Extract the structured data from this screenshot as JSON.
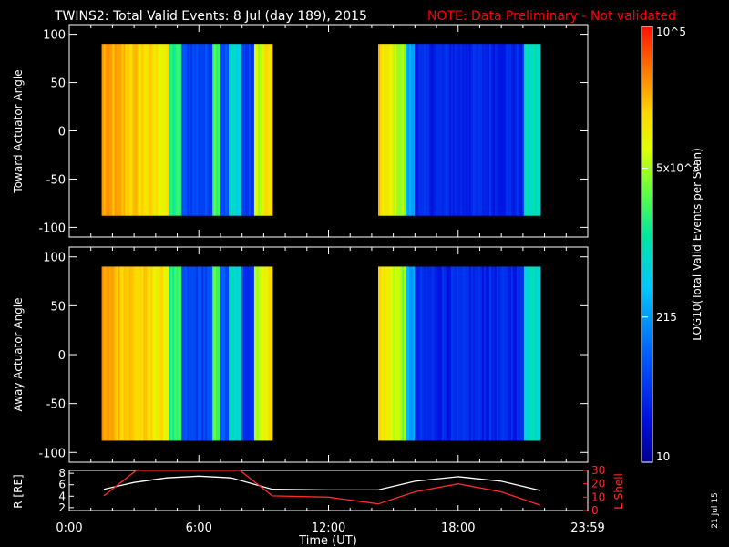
{
  "header": {
    "title": "TWINS2: Total Valid Events:  8 Jul (day 189), 2015",
    "note": "NOTE: Data Preliminary - Not validated"
  },
  "footer": {
    "date_stamp": "21 Jul 15"
  },
  "colors": {
    "background": "#000000",
    "axis": "#ffffff",
    "note": "#ff0000",
    "r_line": "#ffffff",
    "lshell_line": "#ff2a2a"
  },
  "chart_data": [
    {
      "type": "heatmap",
      "panel": "top",
      "ylabel": "Toward Actuator Angle",
      "ylim": [
        -110,
        110
      ],
      "yticks": [
        100,
        50,
        0,
        -50,
        -100
      ],
      "xlim_hours": [
        0,
        24
      ],
      "data_coverage": [
        {
          "start_hour": 1.5,
          "end_hour": 9.4,
          "angle_range": [
            -88,
            90
          ]
        },
        {
          "start_hour": 14.3,
          "end_hour": 21.8,
          "angle_range": [
            -88,
            90
          ]
        }
      ]
    },
    {
      "type": "heatmap",
      "panel": "bottom",
      "ylabel": "Away Actuator Angle",
      "ylim": [
        -110,
        110
      ],
      "yticks": [
        100,
        50,
        0,
        -50,
        -100
      ],
      "xlim_hours": [
        0,
        24
      ],
      "data_coverage": [
        {
          "start_hour": 1.5,
          "end_hour": 9.4,
          "angle_range": [
            -88,
            90
          ]
        },
        {
          "start_hour": 14.3,
          "end_hour": 21.8,
          "angle_range": [
            -88,
            90
          ]
        }
      ]
    },
    {
      "type": "line",
      "panel": "ephemeris",
      "xlabel": "Time (UT)",
      "xticks": [
        "0:00",
        "6:00",
        "12:00",
        "18:00",
        "23:59"
      ],
      "left_axis": {
        "label": "R [RE]",
        "ticks": [
          8,
          6,
          4,
          2
        ],
        "ylim": [
          1.5,
          8.5
        ]
      },
      "right_axis": {
        "label": "L Shell",
        "ticks": [
          30,
          20,
          10,
          0
        ],
        "ylim": [
          0,
          30
        ]
      },
      "series": [
        {
          "name": "R [RE]",
          "axis": "left",
          "x": [
            1.6,
            3,
            4.5,
            6,
            7.5,
            9.4,
            12,
            14.3,
            16,
            18,
            20,
            21.8
          ],
          "y": [
            5.2,
            6.4,
            7.2,
            7.5,
            7.2,
            5.2,
            5.1,
            5.1,
            6.6,
            7.4,
            6.6,
            5.0
          ]
        },
        {
          "name": "L Shell",
          "axis": "right",
          "x": [
            1.6,
            3.1,
            7.9,
            9.4,
            12,
            14.3,
            16,
            18,
            20,
            21.8
          ],
          "y": [
            11,
            30,
            30,
            11,
            10,
            5,
            14,
            20,
            14,
            4
          ]
        }
      ]
    },
    {
      "type": "colorbar",
      "label": "LOG10(Total Valid Events per Scan)",
      "tick_labels": [
        "10^5",
        "5x10^3",
        "215",
        "10"
      ],
      "tick_values": [
        100000,
        5000,
        215,
        10
      ],
      "scale": "log",
      "range": [
        10,
        100000
      ]
    }
  ]
}
